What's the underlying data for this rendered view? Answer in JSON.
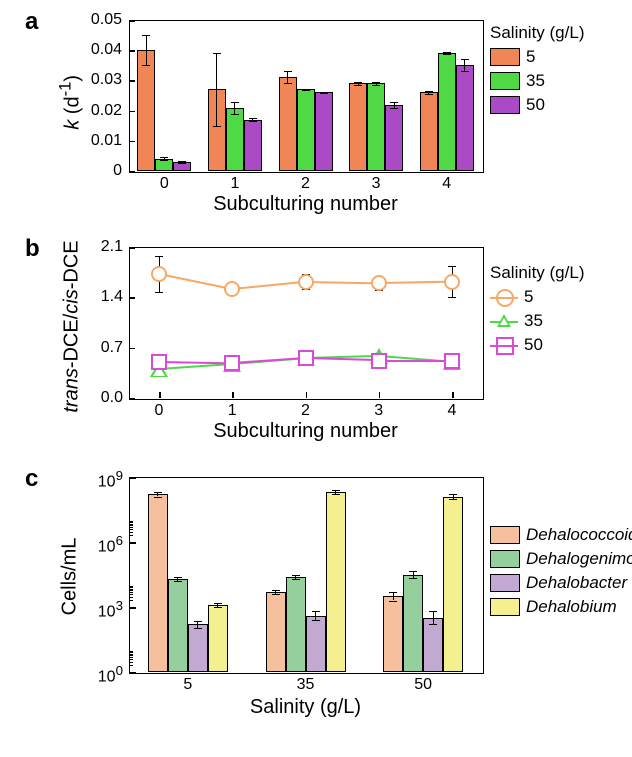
{
  "colors": {
    "orange_bar": "#f08556",
    "green_bar": "#4fd945",
    "purple_bar": "#aa4ac4",
    "peach": "#f6c09e",
    "sage": "#95cf9e",
    "lilac": "#c2a9d2",
    "yellow": "#f4f08f",
    "line_orange": "#f6a865",
    "line_green": "#4fd945",
    "line_magenta": "#d94ad9"
  },
  "panel_a": {
    "label": "a",
    "y_label": "k (d⁻¹)",
    "ylabel_html": "<span style='font-style:italic'>k</span> (d<sup>-1</sup>)",
    "x_label": "Subculturing number",
    "legend_title": "Salinity (g/L)",
    "legend_items": [
      "5",
      "35",
      "50"
    ],
    "y_ticks": [
      0,
      0.01,
      0.02,
      0.03,
      0.04,
      0.05
    ],
    "x_ticks": [
      0,
      1,
      2,
      3,
      4
    ],
    "series": [
      {
        "key": "5",
        "color": "#f08556",
        "vals": [
          0.04,
          0.027,
          0.031,
          0.029,
          0.026
        ],
        "err": [
          0.005,
          0.012,
          0.002,
          0.0005,
          0.0005
        ]
      },
      {
        "key": "35",
        "color": "#4fd945",
        "vals": [
          0.004,
          0.021,
          0.027,
          0.029,
          0.039
        ],
        "err": [
          0.0005,
          0.002,
          0.0003,
          0.0005,
          0.0003
        ]
      },
      {
        "key": "50",
        "color": "#aa4ac4",
        "vals": [
          0.003,
          0.017,
          0.026,
          0.022,
          0.035
        ],
        "err": [
          0.0003,
          0.0005,
          0.0003,
          0.001,
          0.002
        ]
      }
    ]
  },
  "panel_b": {
    "label": "b",
    "y_label": "trans-DCE/cis-DCE",
    "x_label": "Subculturing number",
    "legend_title": "Salinity (g/L)",
    "legend_items": [
      "5",
      "35",
      "50"
    ],
    "y_ticks": [
      0,
      0.7,
      1.4,
      2.1
    ],
    "x_ticks": [
      0,
      1,
      2,
      3,
      4
    ],
    "series": [
      {
        "key": "5",
        "color": "#f6a865",
        "marker": "circle",
        "vals": [
          1.73,
          1.52,
          1.62,
          1.6,
          1.62
        ],
        "err": [
          0.25,
          0.08,
          0.1,
          0.1,
          0.22
        ]
      },
      {
        "key": "35",
        "color": "#4fd945",
        "marker": "triangle",
        "vals": [
          0.4,
          0.47,
          0.55,
          0.58,
          0.5
        ],
        "err": [
          0.08,
          0.05,
          0.05,
          0.03,
          0.03
        ]
      },
      {
        "key": "50",
        "color": "#d94ad9",
        "marker": "square",
        "vals": [
          0.5,
          0.48,
          0.55,
          0.52,
          0.52
        ],
        "err": [
          0.08,
          0.08,
          0.05,
          0.05,
          0.05
        ]
      }
    ]
  },
  "panel_c": {
    "label": "c",
    "y_label": "Cells/mL",
    "x_label": "Salinity (g/L)",
    "legend_items": [
      "Dehalococcoides",
      "Dehalogenimonas",
      "Dehalobacter",
      "Dehalobium"
    ],
    "y_ticks_exp": [
      0,
      3,
      6,
      9
    ],
    "x_ticks": [
      5,
      35,
      50
    ],
    "series": [
      {
        "key": "Dehalococcoides",
        "color": "#f6c09e",
        "vals_log": [
          8.2,
          3.7,
          3.5
        ],
        "err_log": [
          0.1,
          0.1,
          0.2
        ]
      },
      {
        "key": "Dehalogenimonas",
        "color": "#95cf9e",
        "vals_log": [
          4.3,
          4.4,
          4.5
        ],
        "err_log": [
          0.1,
          0.1,
          0.15
        ]
      },
      {
        "key": "Dehalobacter",
        "color": "#c2a9d2",
        "vals_log": [
          2.2,
          2.6,
          2.5
        ],
        "err_log": [
          0.15,
          0.2,
          0.3
        ]
      },
      {
        "key": "Dehalobium",
        "color": "#f4f08f",
        "vals_log": [
          3.1,
          8.3,
          8.1
        ],
        "err_log": [
          0.1,
          0.1,
          0.1
        ]
      }
    ]
  }
}
